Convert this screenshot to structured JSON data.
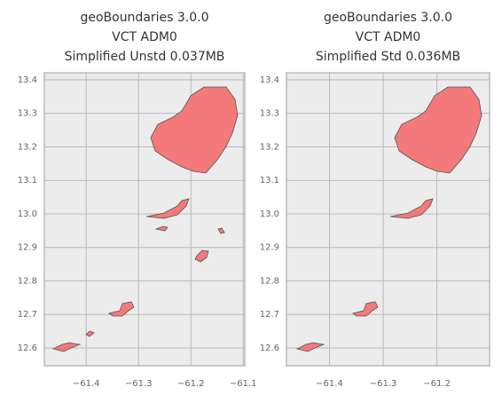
{
  "chart_data": [
    {
      "type": "map",
      "title": [
        "geoBoundaries 3.0.0",
        "VCT ADM0",
        "Simplified Unstd 0.037MB"
      ],
      "xlim": [
        -61.48,
        -61.097
      ],
      "ylim": [
        12.547,
        13.421
      ],
      "xticks": [
        {
          "value": -61.4,
          "label": "−61.4"
        },
        {
          "value": -61.3,
          "label": "−61.3"
        },
        {
          "value": -61.2,
          "label": "−61.2"
        },
        {
          "value": -61.1,
          "label": "−61.1"
        }
      ],
      "yticks": [
        12.6,
        12.7,
        12.8,
        12.9,
        {
          "value": 13.0,
          "label": "13.0"
        },
        13.1,
        13.2,
        13.3,
        13.4
      ],
      "color": "#f47374",
      "grid": true
    },
    {
      "type": "map",
      "title": [
        "geoBoundaries 3.0.0",
        "VCT ADM0",
        "Simplified Std 0.036MB"
      ],
      "xlim": [
        -61.48,
        -61.102
      ],
      "ylim": [
        12.547,
        13.421
      ],
      "xticks": [
        {
          "value": -61.4,
          "label": "−61.4"
        },
        {
          "value": -61.3,
          "label": "−61.3"
        },
        {
          "value": -61.2,
          "label": "−61.2"
        }
      ],
      "yticks": [
        12.6,
        12.7,
        12.8,
        12.9,
        {
          "value": 13.0,
          "label": "13.0"
        },
        13.1,
        13.2,
        13.3,
        13.4
      ],
      "color": "#f47374",
      "grid": true
    }
  ]
}
